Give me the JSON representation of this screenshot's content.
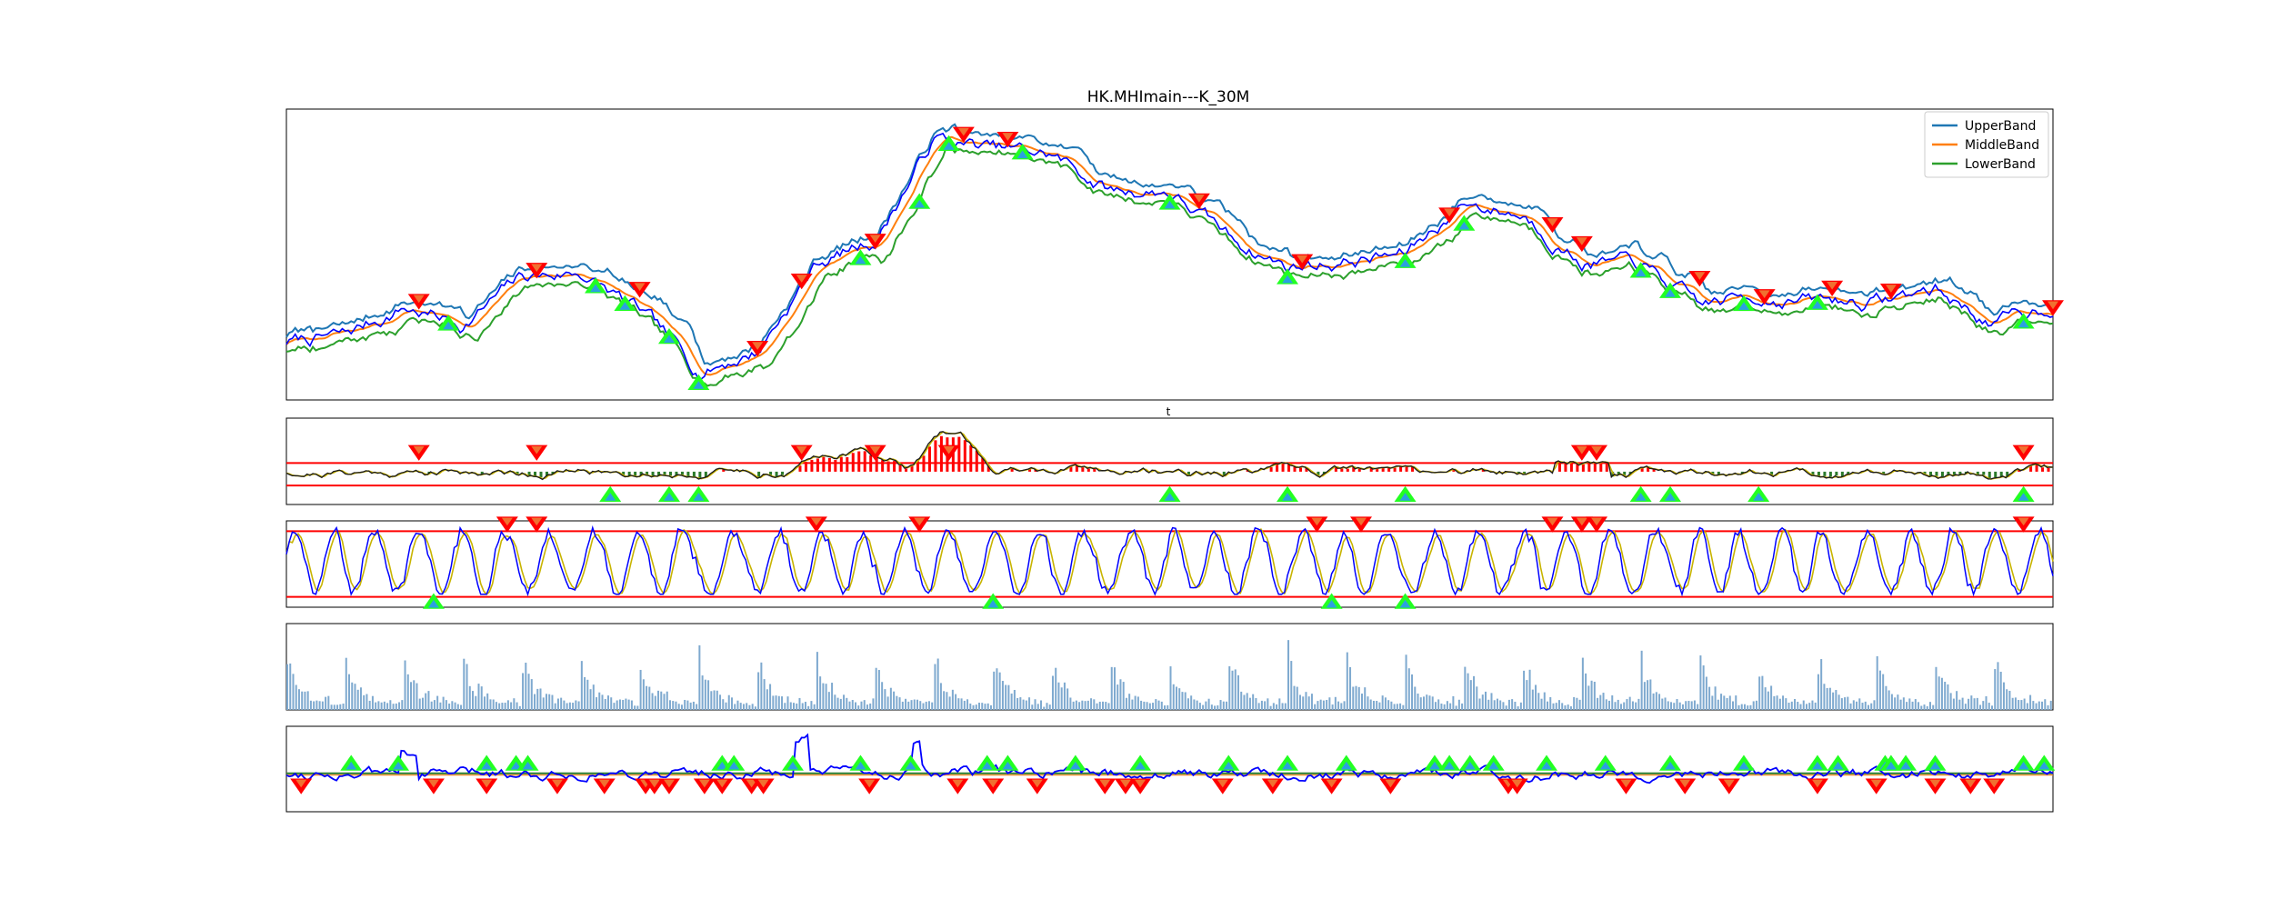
{
  "title": "HK.MHImain---K_30M",
  "colors": {
    "upper": "#1f77b4",
    "middle": "#ff7f0e",
    "lower": "#2ca02c",
    "price": "#0000ff",
    "threshold": "#ff0000",
    "volume": "#7ea9cf",
    "buy_marker": "#22ff22",
    "sell_marker": "#ff0000",
    "signal_line": "#c8b400",
    "zero_line": "#2a7a2a"
  },
  "chart_data": [
    {
      "type": "line",
      "panel": "price",
      "title": "HK.MHImain---K_30M",
      "subtitle": "",
      "grid": false,
      "legend": "top-right",
      "series": [
        {
          "name": "UpperBand",
          "color": "#1f77b4"
        },
        {
          "name": "MiddleBand",
          "color": "#ff7f0e"
        },
        {
          "name": "LowerBand",
          "color": "#2ca02c"
        }
      ],
      "x": [
        0,
        20,
        40,
        60,
        80,
        100,
        120,
        140,
        160,
        180,
        200,
        220,
        240,
        260,
        280,
        300,
        320,
        340,
        360,
        380,
        400,
        420,
        440,
        460,
        480,
        500,
        520,
        540,
        560,
        580,
        600
      ],
      "price": [
        0.2,
        0.22,
        0.32,
        0.26,
        0.42,
        0.44,
        0.3,
        0.1,
        0.17,
        0.47,
        0.55,
        0.9,
        0.86,
        0.84,
        0.72,
        0.72,
        0.56,
        0.46,
        0.48,
        0.5,
        0.68,
        0.64,
        0.48,
        0.46,
        0.32,
        0.36,
        0.34,
        0.34,
        0.38,
        0.26,
        0.33
      ],
      "buy_signals": [
        55,
        105,
        115,
        130,
        140,
        195,
        215,
        225,
        250,
        300,
        340,
        380,
        400,
        460,
        470,
        495,
        520,
        590
      ],
      "sell_signals": [
        45,
        85,
        120,
        160,
        175,
        200,
        230,
        245,
        310,
        345,
        395,
        430,
        440,
        480,
        502,
        525,
        545,
        600
      ]
    },
    {
      "type": "line",
      "panel": "oscillator-1",
      "subtitle": "t",
      "upper_threshold": 0.48,
      "lower_threshold": 0.22,
      "buy_signals": [
        110,
        130,
        140,
        300,
        340,
        380,
        460,
        470,
        500,
        590
      ],
      "sell_signals": [
        45,
        85,
        175,
        200,
        225,
        440,
        445,
        590
      ]
    },
    {
      "type": "line",
      "panel": "oscillator-2",
      "upper_threshold": 0.88,
      "lower_threshold": 0.12,
      "buy_signals": [
        50,
        240,
        355,
        380
      ],
      "sell_signals": [
        75,
        85,
        180,
        215,
        350,
        365,
        430,
        440,
        445,
        590
      ]
    },
    {
      "type": "bar",
      "panel": "volume",
      "session_count": 30,
      "peak_sessions": [
        7,
        17,
        23
      ]
    },
    {
      "type": "line",
      "panel": "oscillator-3",
      "zero_line": 0.45,
      "buy_signals": [
        22,
        38,
        68,
        78,
        82,
        148,
        152,
        172,
        195,
        212,
        238,
        245,
        268,
        290,
        320,
        340,
        360,
        390,
        395,
        402,
        410,
        428,
        448,
        470,
        495,
        520,
        527,
        543,
        545,
        550,
        560,
        590,
        597
      ],
      "sell_signals": [
        5,
        50,
        68,
        92,
        108,
        122,
        125,
        130,
        142,
        148,
        158,
        162,
        198,
        228,
        240,
        255,
        278,
        285,
        290,
        318,
        335,
        355,
        375,
        415,
        418,
        455,
        475,
        490,
        520,
        540,
        560,
        572,
        580
      ]
    }
  ]
}
